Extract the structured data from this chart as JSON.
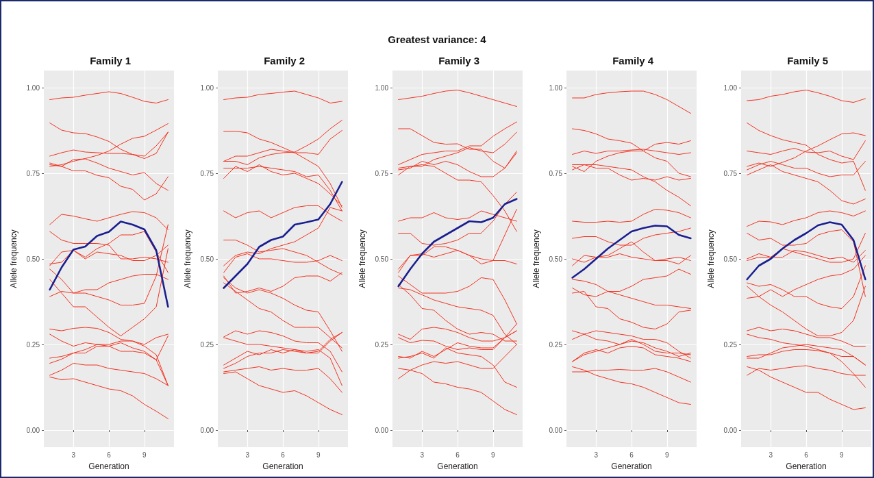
{
  "chart_data": [
    {
      "type": "line",
      "title": "Family 1",
      "xlabel": "Generation",
      "ylabel": "Allele frequency",
      "x": [
        1,
        2,
        3,
        4,
        5,
        6,
        7,
        8,
        9,
        10,
        11
      ],
      "xlim": [
        0.5,
        11.5
      ],
      "xticks": [
        3,
        6,
        9
      ],
      "ylim": [
        -0.05,
        1.05
      ],
      "yticks": [
        {
          "value": 0,
          "label": "0.00"
        },
        {
          "value": 0.25,
          "label": "0.25"
        },
        {
          "value": 0.5,
          "label": "0.50"
        },
        {
          "value": 0.75,
          "label": "0.75"
        },
        {
          "value": 1,
          "label": "1.00"
        }
      ],
      "grid": true,
      "marker": "none",
      "line_style": "solid",
      "series": [
        {
          "color": "#f2321f",
          "values": [
            0.965,
            0.97,
            0.972,
            0.978,
            0.983,
            0.988,
            0.983,
            0.972,
            0.96,
            0.955,
            0.965
          ]
        },
        {
          "color": "#f2321f",
          "values": [
            0.897,
            0.876,
            0.868,
            0.866,
            0.856,
            0.843,
            0.82,
            0.805,
            0.793,
            0.808,
            0.87
          ]
        },
        {
          "color": "#f2321f",
          "values": [
            0.8,
            0.81,
            0.818,
            0.812,
            0.81,
            0.808,
            0.808,
            0.805,
            0.8,
            0.83,
            0.87
          ]
        },
        {
          "color": "#f2321f",
          "values": [
            0.77,
            0.775,
            0.785,
            0.793,
            0.802,
            0.815,
            0.835,
            0.852,
            0.858,
            0.876,
            0.895
          ]
        },
        {
          "color": "#f2321f",
          "values": [
            0.78,
            0.77,
            0.79,
            0.792,
            0.78,
            0.765,
            0.755,
            0.745,
            0.752,
            0.72,
            0.7
          ]
        },
        {
          "color": "#f2321f",
          "values": [
            0.775,
            0.77,
            0.757,
            0.757,
            0.744,
            0.737,
            0.712,
            0.703,
            0.672,
            0.69,
            0.74
          ]
        },
        {
          "color": "#f2321f",
          "values": [
            0.6,
            0.63,
            0.625,
            0.617,
            0.61,
            0.62,
            0.63,
            0.638,
            0.635,
            0.62,
            0.585
          ]
        },
        {
          "color": "#f2321f",
          "values": [
            0.58,
            0.555,
            0.545,
            0.545,
            0.545,
            0.54,
            0.5,
            0.5,
            0.505,
            0.5,
            0.49
          ]
        },
        {
          "color": "#f2321f",
          "values": [
            0.485,
            0.49,
            0.525,
            0.505,
            0.53,
            0.545,
            0.57,
            0.57,
            0.58,
            0.52,
            0.46
          ]
        },
        {
          "color": "#f2321f",
          "values": [
            0.48,
            0.52,
            0.525,
            0.5,
            0.52,
            0.515,
            0.51,
            0.495,
            0.495,
            0.51,
            0.54
          ]
        },
        {
          "color": "#f2321f",
          "values": [
            0.47,
            0.44,
            0.4,
            0.4,
            0.39,
            0.38,
            0.365,
            0.365,
            0.37,
            0.45,
            0.6
          ]
        },
        {
          "color": "#f2321f",
          "values": [
            0.39,
            0.405,
            0.4,
            0.41,
            0.41,
            0.43,
            0.44,
            0.45,
            0.455,
            0.455,
            0.44
          ]
        },
        {
          "color": "#f2321f",
          "values": [
            0.44,
            0.4,
            0.36,
            0.36,
            0.33,
            0.3,
            0.275,
            0.3,
            0.325,
            0.36,
            0.53
          ]
        },
        {
          "color": "#f2321f",
          "values": [
            0.295,
            0.29,
            0.297,
            0.3,
            0.297,
            0.285,
            0.265,
            0.26,
            0.25,
            0.27,
            0.28
          ]
        },
        {
          "color": "#f2321f",
          "values": [
            0.28,
            0.26,
            0.245,
            0.255,
            0.25,
            0.25,
            0.26,
            0.26,
            0.245,
            0.22,
            0.13
          ]
        },
        {
          "color": "#f2321f",
          "values": [
            0.21,
            0.215,
            0.225,
            0.235,
            0.25,
            0.245,
            0.255,
            0.24,
            0.23,
            0.205,
            0.13
          ]
        },
        {
          "color": "#f2321f",
          "values": [
            0.195,
            0.207,
            0.225,
            0.225,
            0.245,
            0.245,
            0.23,
            0.23,
            0.225,
            0.205,
            0.275
          ]
        },
        {
          "color": "#f2321f",
          "values": [
            0.16,
            0.175,
            0.195,
            0.19,
            0.19,
            0.18,
            0.175,
            0.17,
            0.165,
            0.15,
            0.13
          ]
        },
        {
          "color": "#f2321f",
          "values": [
            0.155,
            0.147,
            0.15,
            0.14,
            0.13,
            0.12,
            0.115,
            0.1,
            0.075,
            0.055,
            0.033
          ]
        },
        {
          "color": "#1a1f8f",
          "values": [
            0.41,
            0.475,
            0.527,
            0.536,
            0.567,
            0.579,
            0.609,
            0.6,
            0.586,
            0.525,
            0.36
          ]
        }
      ]
    },
    {
      "type": "line",
      "title": "Family 2",
      "xlabel": "Generation",
      "ylabel": "Allele frequency",
      "x": [
        1,
        2,
        3,
        4,
        5,
        6,
        7,
        8,
        9,
        10,
        11
      ],
      "xlim": [
        0.5,
        11.5
      ],
      "xticks": [
        3,
        6,
        9
      ],
      "ylim": [
        -0.05,
        1.05
      ],
      "yticks": [
        {
          "value": 0,
          "label": "0.00"
        },
        {
          "value": 0.25,
          "label": "0.25"
        },
        {
          "value": 0.5,
          "label": "0.50"
        },
        {
          "value": 0.75,
          "label": "0.75"
        },
        {
          "value": 1,
          "label": "1.00"
        }
      ],
      "grid": true,
      "marker": "none",
      "line_style": "solid",
      "series": [
        {
          "color": "#f2321f",
          "values": [
            0.965,
            0.97,
            0.972,
            0.98,
            0.983,
            0.987,
            0.99,
            0.98,
            0.97,
            0.955,
            0.96
          ]
        },
        {
          "color": "#f2321f",
          "values": [
            0.873,
            0.873,
            0.868,
            0.85,
            0.84,
            0.825,
            0.81,
            0.79,
            0.77,
            0.72,
            0.65
          ]
        },
        {
          "color": "#f2321f",
          "values": [
            0.785,
            0.8,
            0.8,
            0.81,
            0.82,
            0.815,
            0.81,
            0.81,
            0.805,
            0.85,
            0.875
          ]
        },
        {
          "color": "#f2321f",
          "values": [
            0.785,
            0.785,
            0.775,
            0.795,
            0.805,
            0.81,
            0.812,
            0.83,
            0.85,
            0.88,
            0.905
          ]
        },
        {
          "color": "#f2321f",
          "values": [
            0.765,
            0.765,
            0.765,
            0.77,
            0.765,
            0.76,
            0.755,
            0.74,
            0.745,
            0.7,
            0.64
          ]
        },
        {
          "color": "#f2321f",
          "values": [
            0.735,
            0.77,
            0.755,
            0.775,
            0.755,
            0.745,
            0.75,
            0.735,
            0.72,
            0.69,
            0.655
          ]
        },
        {
          "color": "#f2321f",
          "values": [
            0.64,
            0.62,
            0.635,
            0.64,
            0.62,
            0.635,
            0.65,
            0.655,
            0.655,
            0.63,
            0.61
          ]
        },
        {
          "color": "#f2321f",
          "values": [
            0.555,
            0.555,
            0.54,
            0.52,
            0.525,
            0.53,
            0.52,
            0.51,
            0.49,
            0.47,
            0.455
          ]
        },
        {
          "color": "#f2321f",
          "values": [
            0.48,
            0.51,
            0.52,
            0.515,
            0.53,
            0.54,
            0.55,
            0.57,
            0.59,
            0.65,
            0.64
          ]
        },
        {
          "color": "#f2321f",
          "values": [
            0.46,
            0.505,
            0.515,
            0.5,
            0.5,
            0.495,
            0.49,
            0.49,
            0.495,
            0.51,
            0.495
          ]
        },
        {
          "color": "#f2321f",
          "values": [
            0.45,
            0.4,
            0.405,
            0.415,
            0.405,
            0.42,
            0.445,
            0.45,
            0.45,
            0.435,
            0.46
          ]
        },
        {
          "color": "#f2321f",
          "values": [
            0.445,
            0.415,
            0.4,
            0.41,
            0.4,
            0.385,
            0.365,
            0.35,
            0.345,
            0.29,
            0.23
          ]
        },
        {
          "color": "#f2321f",
          "values": [
            0.43,
            0.405,
            0.38,
            0.355,
            0.345,
            0.32,
            0.3,
            0.3,
            0.3,
            0.27,
            0.24
          ]
        },
        {
          "color": "#f2321f",
          "values": [
            0.272,
            0.29,
            0.28,
            0.29,
            0.285,
            0.275,
            0.26,
            0.255,
            0.255,
            0.23,
            0.17
          ]
        },
        {
          "color": "#f2321f",
          "values": [
            0.27,
            0.26,
            0.25,
            0.25,
            0.245,
            0.24,
            0.235,
            0.225,
            0.23,
            0.265,
            0.285
          ]
        },
        {
          "color": "#f2321f",
          "values": [
            0.19,
            0.21,
            0.23,
            0.22,
            0.235,
            0.225,
            0.235,
            0.23,
            0.235,
            0.21,
            0.13
          ]
        },
        {
          "color": "#f2321f",
          "values": [
            0.18,
            0.195,
            0.215,
            0.225,
            0.225,
            0.235,
            0.23,
            0.225,
            0.225,
            0.26,
            0.285
          ]
        },
        {
          "color": "#f2321f",
          "values": [
            0.17,
            0.175,
            0.18,
            0.185,
            0.175,
            0.18,
            0.175,
            0.175,
            0.18,
            0.15,
            0.11
          ]
        },
        {
          "color": "#f2321f",
          "values": [
            0.165,
            0.17,
            0.15,
            0.13,
            0.12,
            0.11,
            0.115,
            0.1,
            0.08,
            0.06,
            0.045
          ]
        },
        {
          "color": "#1a1f8f",
          "values": [
            0.415,
            0.45,
            0.485,
            0.535,
            0.555,
            0.565,
            0.6,
            0.607,
            0.615,
            0.66,
            0.725
          ]
        }
      ]
    },
    {
      "type": "line",
      "title": "Family 3",
      "xlabel": "Generation",
      "ylabel": "Allele frequency",
      "annotations": [
        "Greatest variance: 4"
      ],
      "x": [
        1,
        2,
        3,
        4,
        5,
        6,
        7,
        8,
        9,
        10,
        11
      ],
      "xlim": [
        0.5,
        11.5
      ],
      "xticks": [
        3,
        6,
        9
      ],
      "ylim": [
        -0.05,
        1.05
      ],
      "yticks": [
        {
          "value": 0,
          "label": "0.00"
        },
        {
          "value": 0.25,
          "label": "0.25"
        },
        {
          "value": 0.5,
          "label": "0.50"
        },
        {
          "value": 0.75,
          "label": "0.75"
        },
        {
          "value": 1,
          "label": "1.00"
        }
      ],
      "grid": true,
      "marker": "none",
      "line_style": "solid",
      "series": [
        {
          "color": "#f2321f",
          "values": [
            0.965,
            0.97,
            0.975,
            0.983,
            0.99,
            0.993,
            0.985,
            0.975,
            0.965,
            0.955,
            0.945
          ]
        },
        {
          "color": "#f2321f",
          "values": [
            0.88,
            0.88,
            0.86,
            0.84,
            0.835,
            0.836,
            0.82,
            0.82,
            0.785,
            0.765,
            0.81
          ]
        },
        {
          "color": "#f2321f",
          "values": [
            0.775,
            0.79,
            0.805,
            0.81,
            0.815,
            0.815,
            0.83,
            0.83,
            0.858,
            0.88,
            0.9
          ]
        },
        {
          "color": "#f2321f",
          "values": [
            0.765,
            0.77,
            0.77,
            0.79,
            0.8,
            0.81,
            0.825,
            0.815,
            0.81,
            0.835,
            0.87
          ]
        },
        {
          "color": "#f2321f",
          "values": [
            0.76,
            0.765,
            0.785,
            0.775,
            0.785,
            0.775,
            0.755,
            0.74,
            0.74,
            0.765,
            0.815
          ]
        },
        {
          "color": "#f2321f",
          "values": [
            0.745,
            0.77,
            0.775,
            0.77,
            0.75,
            0.73,
            0.73,
            0.725,
            0.685,
            0.64,
            0.58
          ]
        },
        {
          "color": "#f2321f",
          "values": [
            0.61,
            0.62,
            0.62,
            0.635,
            0.62,
            0.615,
            0.62,
            0.64,
            0.63,
            0.62,
            0.61
          ]
        },
        {
          "color": "#f2321f",
          "values": [
            0.575,
            0.575,
            0.545,
            0.54,
            0.545,
            0.555,
            0.575,
            0.575,
            0.61,
            0.66,
            0.695
          ]
        },
        {
          "color": "#f2321f",
          "values": [
            0.47,
            0.51,
            0.515,
            0.505,
            0.515,
            0.525,
            0.51,
            0.485,
            0.495,
            0.57,
            0.645
          ]
        },
        {
          "color": "#f2321f",
          "values": [
            0.46,
            0.51,
            0.51,
            0.535,
            0.535,
            0.525,
            0.51,
            0.5,
            0.495,
            0.495,
            0.485
          ]
        },
        {
          "color": "#f2321f",
          "values": [
            0.45,
            0.425,
            0.4,
            0.4,
            0.4,
            0.405,
            0.42,
            0.445,
            0.44,
            0.38,
            0.31
          ]
        },
        {
          "color": "#f2321f",
          "values": [
            0.415,
            0.41,
            0.395,
            0.38,
            0.37,
            0.36,
            0.355,
            0.35,
            0.335,
            0.28,
            0.25
          ]
        },
        {
          "color": "#f2321f",
          "values": [
            0.425,
            0.395,
            0.355,
            0.35,
            0.32,
            0.295,
            0.28,
            0.285,
            0.28,
            0.26,
            0.26
          ]
        },
        {
          "color": "#f2321f",
          "values": [
            0.28,
            0.265,
            0.295,
            0.3,
            0.295,
            0.285,
            0.27,
            0.26,
            0.26,
            0.27,
            0.29
          ]
        },
        {
          "color": "#f2321f",
          "values": [
            0.27,
            0.255,
            0.262,
            0.26,
            0.245,
            0.235,
            0.24,
            0.235,
            0.235,
            0.27,
            0.29
          ]
        },
        {
          "color": "#f2321f",
          "values": [
            0.215,
            0.21,
            0.23,
            0.215,
            0.235,
            0.255,
            0.245,
            0.24,
            0.24,
            0.27,
            0.31
          ]
        },
        {
          "color": "#f2321f",
          "values": [
            0.21,
            0.215,
            0.225,
            0.21,
            0.24,
            0.225,
            0.22,
            0.215,
            0.19,
            0.14,
            0.125
          ]
        },
        {
          "color": "#f2321f",
          "values": [
            0.18,
            0.175,
            0.19,
            0.2,
            0.195,
            0.2,
            0.19,
            0.18,
            0.18,
            0.215,
            0.25
          ]
        },
        {
          "color": "#f2321f",
          "values": [
            0.15,
            0.175,
            0.165,
            0.14,
            0.135,
            0.125,
            0.12,
            0.11,
            0.085,
            0.06,
            0.045
          ]
        },
        {
          "color": "#1a1f8f",
          "values": [
            0.42,
            0.47,
            0.515,
            0.55,
            0.57,
            0.59,
            0.61,
            0.607,
            0.62,
            0.66,
            0.675
          ]
        }
      ]
    },
    {
      "type": "line",
      "title": "Family 4",
      "xlabel": "Generation",
      "ylabel": "Allele frequency",
      "x": [
        1,
        2,
        3,
        4,
        5,
        6,
        7,
        8,
        9,
        10,
        11
      ],
      "xlim": [
        0.5,
        11.5
      ],
      "xticks": [
        3,
        6,
        9
      ],
      "ylim": [
        -0.05,
        1.05
      ],
      "yticks": [
        {
          "value": 0,
          "label": "0.00"
        },
        {
          "value": 0.25,
          "label": "0.25"
        },
        {
          "value": 0.5,
          "label": "0.50"
        },
        {
          "value": 0.75,
          "label": "0.75"
        },
        {
          "value": 1,
          "label": "1.00"
        }
      ],
      "grid": true,
      "marker": "none",
      "line_style": "solid",
      "series": [
        {
          "color": "#f2321f",
          "values": [
            0.97,
            0.97,
            0.98,
            0.985,
            0.988,
            0.99,
            0.99,
            0.98,
            0.965,
            0.945,
            0.925
          ]
        },
        {
          "color": "#f2321f",
          "values": [
            0.88,
            0.875,
            0.865,
            0.85,
            0.845,
            0.838,
            0.815,
            0.795,
            0.785,
            0.75,
            0.74
          ]
        },
        {
          "color": "#f2321f",
          "values": [
            0.805,
            0.815,
            0.808,
            0.815,
            0.815,
            0.818,
            0.82,
            0.815,
            0.81,
            0.805,
            0.81
          ]
        },
        {
          "color": "#f2321f",
          "values": [
            0.775,
            0.775,
            0.765,
            0.765,
            0.745,
            0.73,
            0.735,
            0.73,
            0.74,
            0.73,
            0.735
          ]
        },
        {
          "color": "#f2321f",
          "values": [
            0.77,
            0.755,
            0.785,
            0.8,
            0.81,
            0.815,
            0.815,
            0.835,
            0.84,
            0.835,
            0.845
          ]
        },
        {
          "color": "#f2321f",
          "values": [
            0.76,
            0.775,
            0.775,
            0.77,
            0.765,
            0.76,
            0.74,
            0.725,
            0.7,
            0.68,
            0.655
          ]
        },
        {
          "color": "#f2321f",
          "values": [
            0.61,
            0.607,
            0.607,
            0.61,
            0.607,
            0.61,
            0.63,
            0.645,
            0.642,
            0.635,
            0.62
          ]
        },
        {
          "color": "#f2321f",
          "values": [
            0.56,
            0.565,
            0.565,
            0.55,
            0.54,
            0.54,
            0.56,
            0.57,
            0.575,
            0.58,
            0.59
          ]
        },
        {
          "color": "#f2321f",
          "values": [
            0.5,
            0.49,
            0.505,
            0.505,
            0.515,
            0.505,
            0.5,
            0.495,
            0.5,
            0.505,
            0.495
          ]
        },
        {
          "color": "#f2321f",
          "values": [
            0.48,
            0.51,
            0.505,
            0.51,
            0.53,
            0.55,
            0.52,
            0.495,
            0.495,
            0.485,
            0.51
          ]
        },
        {
          "color": "#f2321f",
          "values": [
            0.44,
            0.435,
            0.425,
            0.405,
            0.405,
            0.42,
            0.44,
            0.445,
            0.45,
            0.47,
            0.455
          ]
        },
        {
          "color": "#f2321f",
          "values": [
            0.415,
            0.395,
            0.39,
            0.405,
            0.395,
            0.385,
            0.375,
            0.365,
            0.365,
            0.36,
            0.355
          ]
        },
        {
          "color": "#f2321f",
          "values": [
            0.4,
            0.405,
            0.36,
            0.355,
            0.325,
            0.315,
            0.3,
            0.295,
            0.31,
            0.345,
            0.35
          ]
        },
        {
          "color": "#f2321f",
          "values": [
            0.29,
            0.28,
            0.29,
            0.285,
            0.28,
            0.275,
            0.265,
            0.265,
            0.255,
            0.23,
            0.21
          ]
        },
        {
          "color": "#f2321f",
          "values": [
            0.265,
            0.28,
            0.265,
            0.26,
            0.25,
            0.26,
            0.255,
            0.24,
            0.23,
            0.215,
            0.225
          ]
        },
        {
          "color": "#f2321f",
          "values": [
            0.2,
            0.22,
            0.23,
            0.24,
            0.25,
            0.265,
            0.25,
            0.23,
            0.225,
            0.225,
            0.22
          ]
        },
        {
          "color": "#f2321f",
          "values": [
            0.2,
            0.225,
            0.235,
            0.225,
            0.24,
            0.245,
            0.24,
            0.22,
            0.215,
            0.21,
            0.2
          ]
        },
        {
          "color": "#f2321f",
          "values": [
            0.185,
            0.175,
            0.16,
            0.15,
            0.14,
            0.135,
            0.125,
            0.11,
            0.095,
            0.08,
            0.075
          ]
        },
        {
          "color": "#f2321f",
          "values": [
            0.17,
            0.17,
            0.175,
            0.175,
            0.177,
            0.175,
            0.175,
            0.18,
            0.17,
            0.155,
            0.14
          ]
        },
        {
          "color": "#1a1f8f",
          "values": [
            0.445,
            0.47,
            0.5,
            0.53,
            0.555,
            0.58,
            0.59,
            0.597,
            0.595,
            0.57,
            0.56
          ]
        }
      ]
    },
    {
      "type": "line",
      "title": "Family 5",
      "xlabel": "Generation",
      "ylabel": "Allele frequency",
      "x": [
        1,
        2,
        3,
        4,
        5,
        6,
        7,
        8,
        9,
        10,
        11
      ],
      "xlim": [
        0.5,
        11.5
      ],
      "xticks": [
        3,
        6,
        9
      ],
      "ylim": [
        -0.05,
        1.05
      ],
      "yticks": [
        {
          "value": 0,
          "label": "0.00"
        },
        {
          "value": 0.25,
          "label": "0.25"
        },
        {
          "value": 0.5,
          "label": "0.50"
        },
        {
          "value": 0.75,
          "label": "0.75"
        },
        {
          "value": 1,
          "label": "1.00"
        }
      ],
      "grid": true,
      "marker": "none",
      "line_style": "solid",
      "series": [
        {
          "color": "#f2321f",
          "values": [
            0.962,
            0.965,
            0.975,
            0.98,
            0.988,
            0.993,
            0.985,
            0.975,
            0.962,
            0.957,
            0.968
          ]
        },
        {
          "color": "#f2321f",
          "values": [
            0.897,
            0.875,
            0.86,
            0.848,
            0.84,
            0.832,
            0.805,
            0.79,
            0.78,
            0.785,
            0.7
          ]
        },
        {
          "color": "#f2321f",
          "values": [
            0.815,
            0.81,
            0.805,
            0.815,
            0.823,
            0.812,
            0.81,
            0.815,
            0.8,
            0.79,
            0.845
          ]
        },
        {
          "color": "#f2321f",
          "values": [
            0.77,
            0.78,
            0.77,
            0.782,
            0.795,
            0.815,
            0.83,
            0.848,
            0.865,
            0.868,
            0.86
          ]
        },
        {
          "color": "#f2321f",
          "values": [
            0.76,
            0.775,
            0.785,
            0.775,
            0.765,
            0.765,
            0.75,
            0.74,
            0.745,
            0.745,
            0.785
          ]
        },
        {
          "color": "#f2321f",
          "values": [
            0.745,
            0.76,
            0.775,
            0.755,
            0.745,
            0.735,
            0.725,
            0.7,
            0.67,
            0.66,
            0.675
          ]
        },
        {
          "color": "#f2321f",
          "values": [
            0.595,
            0.61,
            0.608,
            0.6,
            0.612,
            0.62,
            0.635,
            0.64,
            0.635,
            0.625,
            0.64
          ]
        },
        {
          "color": "#f2321f",
          "values": [
            0.575,
            0.555,
            0.56,
            0.54,
            0.54,
            0.545,
            0.57,
            0.58,
            0.585,
            0.55,
            0.39
          ]
        },
        {
          "color": "#f2321f",
          "values": [
            0.5,
            0.515,
            0.505,
            0.505,
            0.525,
            0.52,
            0.51,
            0.5,
            0.505,
            0.49,
            0.525
          ]
        },
        {
          "color": "#f2321f",
          "values": [
            0.495,
            0.505,
            0.505,
            0.53,
            0.52,
            0.51,
            0.5,
            0.49,
            0.49,
            0.5,
            0.575
          ]
        },
        {
          "color": "#f2321f",
          "values": [
            0.43,
            0.42,
            0.425,
            0.41,
            0.39,
            0.39,
            0.37,
            0.36,
            0.355,
            0.39,
            0.48
          ]
        },
        {
          "color": "#f2321f",
          "values": [
            0.42,
            0.39,
            0.365,
            0.345,
            0.32,
            0.295,
            0.275,
            0.275,
            0.285,
            0.32,
            0.42
          ]
        },
        {
          "color": "#f2321f",
          "values": [
            0.385,
            0.39,
            0.41,
            0.39,
            0.41,
            0.425,
            0.44,
            0.45,
            0.455,
            0.47,
            0.51
          ]
        },
        {
          "color": "#f2321f",
          "values": [
            0.29,
            0.3,
            0.29,
            0.295,
            0.29,
            0.28,
            0.27,
            0.27,
            0.26,
            0.245,
            0.245
          ]
        },
        {
          "color": "#f2321f",
          "values": [
            0.28,
            0.27,
            0.265,
            0.255,
            0.25,
            0.245,
            0.235,
            0.225,
            0.215,
            0.215,
            0.19
          ]
        },
        {
          "color": "#f2321f",
          "values": [
            0.21,
            0.21,
            0.225,
            0.24,
            0.245,
            0.25,
            0.245,
            0.24,
            0.235,
            0.215,
            0.19
          ]
        },
        {
          "color": "#f2321f",
          "values": [
            0.215,
            0.22,
            0.22,
            0.23,
            0.235,
            0.235,
            0.232,
            0.225,
            0.2,
            0.165,
            0.125
          ]
        },
        {
          "color": "#f2321f",
          "values": [
            0.16,
            0.18,
            0.175,
            0.18,
            0.185,
            0.188,
            0.18,
            0.175,
            0.165,
            0.16,
            0.16
          ]
        },
        {
          "color": "#f2321f",
          "values": [
            0.185,
            0.175,
            0.155,
            0.14,
            0.125,
            0.11,
            0.11,
            0.09,
            0.075,
            0.06,
            0.065
          ]
        },
        {
          "color": "#1a1f8f",
          "values": [
            0.44,
            0.48,
            0.5,
            0.53,
            0.555,
            0.575,
            0.598,
            0.607,
            0.6,
            0.555,
            0.44
          ]
        }
      ]
    }
  ]
}
